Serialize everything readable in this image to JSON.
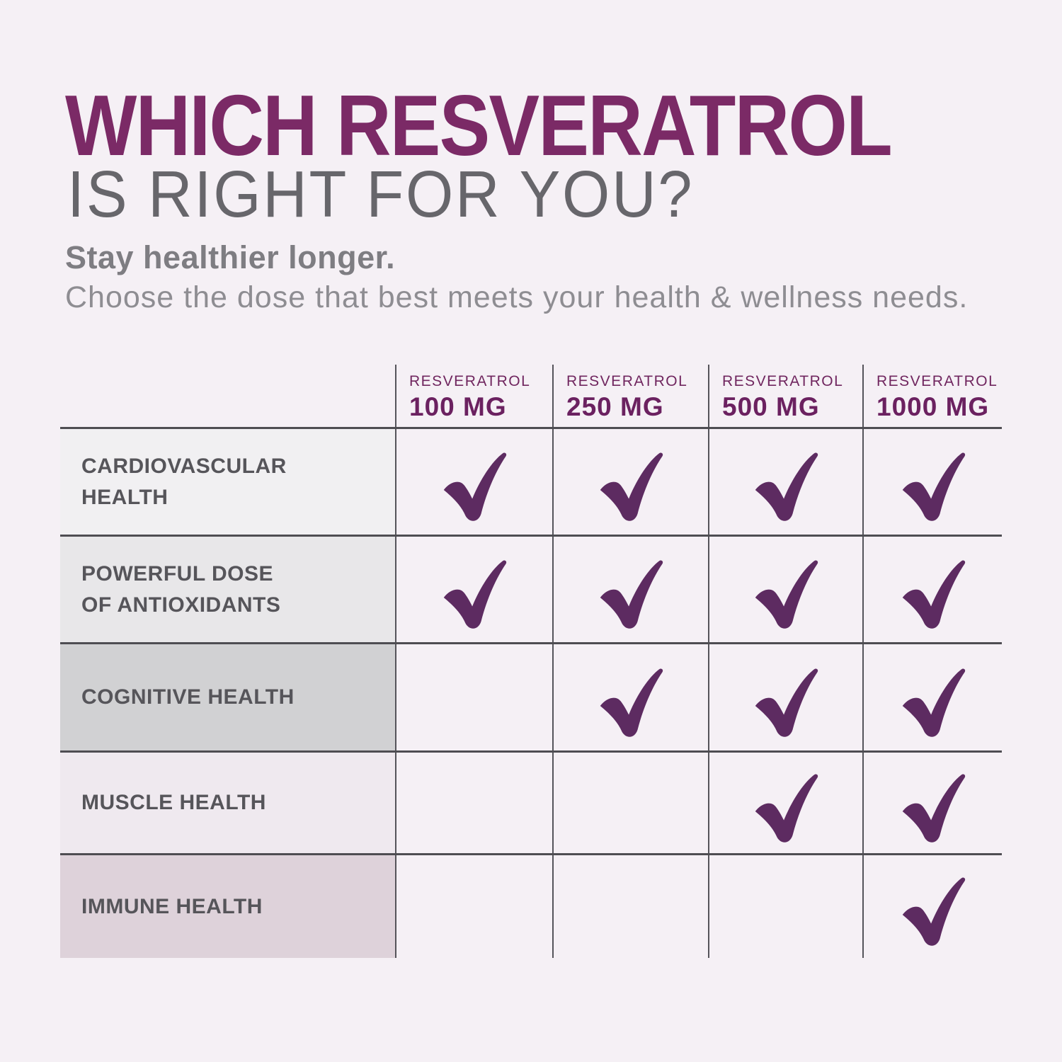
{
  "infographic": {
    "title_line1": "WHICH RESVERATROL",
    "title_line2": "IS RIGHT FOR YOU?",
    "tagline": "Stay healthier longer.",
    "description": "Choose the dose that best meets your health & wellness needs."
  },
  "colors": {
    "background": "#f5f0f5",
    "title_accent": "#7b2a66",
    "title_secondary": "#67666b",
    "tagline_gray": "#7e7d82",
    "description_gray": "#8e8d92",
    "header_brand_purple": "#70265f",
    "header_dose_purple": "#6b2160",
    "check_purple": "#5d2b61",
    "label_text": "#56555a",
    "grid_line": "#4e4d52",
    "row_backgrounds": [
      "#f1f0f2",
      "#e8e7e9",
      "#d1d1d3",
      "#efe9ef",
      "#ded2da"
    ]
  },
  "chart_data": {
    "type": "table",
    "title": "WHICH RESVERATROL IS RIGHT FOR YOU?",
    "columns": [
      {
        "product": "RESVERATROL",
        "dose": "100 MG"
      },
      {
        "product": "RESVERATROL",
        "dose": "250 MG"
      },
      {
        "product": "RESVERATROL",
        "dose": "500 MG"
      },
      {
        "product": "RESVERATROL",
        "dose": "1000 MG"
      }
    ],
    "rows": [
      {
        "label_lines": [
          "CARDIOVASCULAR",
          "HEALTH"
        ],
        "checks": [
          true,
          true,
          true,
          true
        ]
      },
      {
        "label_lines": [
          "POWERFUL DOSE",
          "OF ANTIOXIDANTS"
        ],
        "checks": [
          true,
          true,
          true,
          true
        ]
      },
      {
        "label_lines": [
          "COGNITIVE HEALTH"
        ],
        "checks": [
          false,
          true,
          true,
          true
        ]
      },
      {
        "label_lines": [
          "MUSCLE HEALTH"
        ],
        "checks": [
          false,
          false,
          true,
          true
        ]
      },
      {
        "label_lines": [
          "IMMUNE HEALTH"
        ],
        "checks": [
          false,
          false,
          false,
          true
        ]
      }
    ],
    "check_icon": "checkmark"
  }
}
